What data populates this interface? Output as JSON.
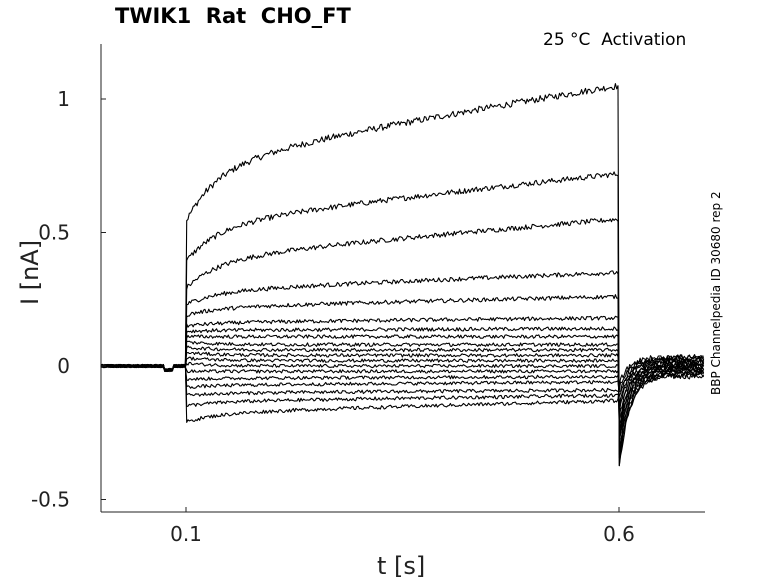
{
  "chart_data": {
    "type": "line",
    "title": "TWIK1  Rat  CHO_FT",
    "annotation": "25 °C  Activation",
    "side_label": "BBP Channelpedia ID 30680 rep 2",
    "xlabel": "t [s]",
    "ylabel": "I [nA]",
    "xlim": [
      -0.0,
      0.7
    ],
    "ylim": [
      -0.55,
      1.2
    ],
    "xticks": [
      0.1,
      0.6
    ],
    "xtick_labels": [
      "0.1",
      "0.6"
    ],
    "yticks": [
      -0.5,
      0,
      0.5,
      1
    ],
    "ytick_labels": [
      "-0.5",
      "0",
      "0.5",
      "1"
    ],
    "grid": false,
    "step_start": 0.1,
    "step_end": 0.6,
    "series": [
      {
        "onset": 0.54,
        "end": 1.05
      },
      {
        "onset": 0.39,
        "end": 0.72
      },
      {
        "onset": 0.29,
        "end": 0.55
      },
      {
        "onset": 0.23,
        "end": 0.35
      },
      {
        "onset": 0.19,
        "end": 0.26
      },
      {
        "onset": 0.15,
        "end": 0.18
      },
      {
        "onset": 0.13,
        "end": 0.14
      },
      {
        "onset": 0.11,
        "end": 0.11
      },
      {
        "onset": 0.09,
        "end": 0.08
      },
      {
        "onset": 0.07,
        "end": 0.06
      },
      {
        "onset": 0.05,
        "end": 0.04
      },
      {
        "onset": 0.03,
        "end": 0.02
      },
      {
        "onset": 0.01,
        "end": 0.0
      },
      {
        "onset": -0.02,
        "end": -0.02
      },
      {
        "onset": -0.05,
        "end": -0.04
      },
      {
        "onset": -0.08,
        "end": -0.06
      },
      {
        "onset": -0.11,
        "end": -0.09
      },
      {
        "onset": -0.15,
        "end": -0.11
      },
      {
        "onset": -0.21,
        "end": -0.13
      }
    ]
  }
}
